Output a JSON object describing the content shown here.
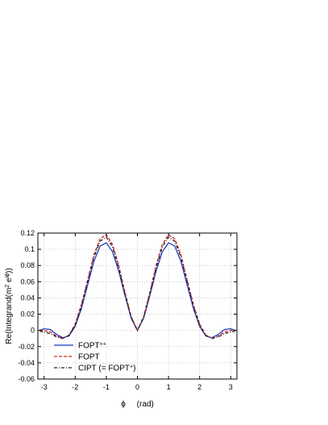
{
  "chart_data": {
    "type": "line",
    "title": "",
    "xlabel": "ϕ     (rad)",
    "ylabel": "Re(Integrand(m² e^{iϕ}))",
    "xlim": [
      -3.2,
      3.2
    ],
    "ylim": [
      -0.06,
      0.12
    ],
    "xticks": [
      -3,
      -2,
      -1,
      0,
      1,
      2,
      3
    ],
    "yticks": [
      -0.06,
      -0.04,
      -0.02,
      0,
      0.02,
      0.04,
      0.06,
      0.08,
      0.1,
      0.12
    ],
    "grid": true,
    "legend_position": "bottom-left",
    "legend": [
      {
        "text": "FOPT",
        "sup": "++"
      },
      {
        "text": "FOPT",
        "sup": ""
      },
      {
        "text": "CIPT (= FOPT",
        "sup": "+",
        "tail": ")"
      }
    ],
    "x": [
      -3.14,
      -3.0,
      -2.8,
      -2.6,
      -2.4,
      -2.2,
      -2.0,
      -1.8,
      -1.6,
      -1.4,
      -1.2,
      -1.0,
      -0.8,
      -0.6,
      -0.4,
      -0.2,
      0,
      0.2,
      0.4,
      0.6,
      0.8,
      1.0,
      1.2,
      1.4,
      1.6,
      1.8,
      2.0,
      2.2,
      2.4,
      2.6,
      2.8,
      3.0,
      3.14
    ],
    "series": [
      {
        "name": "FOPT++",
        "color": "#1f3fbf",
        "dash": "solid",
        "values": [
          0.0,
          0.002,
          0.001,
          -0.005,
          -0.009,
          -0.007,
          0.005,
          0.027,
          0.056,
          0.085,
          0.104,
          0.108,
          0.097,
          0.073,
          0.043,
          0.015,
          0.0,
          0.015,
          0.043,
          0.073,
          0.097,
          0.108,
          0.104,
          0.085,
          0.056,
          0.027,
          0.005,
          -0.007,
          -0.009,
          -0.005,
          0.001,
          0.002,
          0.0
        ]
      },
      {
        "name": "FOPT",
        "color": "#d42020",
        "dash": "4,2",
        "values": [
          0.0,
          0.0,
          -0.002,
          -0.007,
          -0.01,
          -0.006,
          0.008,
          0.032,
          0.062,
          0.093,
          0.113,
          0.118,
          0.106,
          0.08,
          0.047,
          0.017,
          0.0,
          0.017,
          0.047,
          0.08,
          0.106,
          0.118,
          0.113,
          0.093,
          0.062,
          0.032,
          0.008,
          -0.006,
          -0.01,
          -0.007,
          -0.002,
          0.0,
          0.0
        ]
      },
      {
        "name": "CIPT (= FOPT+)",
        "color": "#222222",
        "dash": "4,2,1,2",
        "values": [
          -0.001,
          -0.002,
          -0.004,
          -0.008,
          -0.01,
          -0.006,
          0.006,
          0.03,
          0.06,
          0.09,
          0.11,
          0.115,
          0.103,
          0.077,
          0.045,
          0.016,
          0.0,
          0.016,
          0.045,
          0.077,
          0.103,
          0.115,
          0.11,
          0.09,
          0.06,
          0.03,
          0.006,
          -0.006,
          -0.01,
          -0.008,
          -0.004,
          -0.002,
          -0.001
        ]
      }
    ]
  }
}
